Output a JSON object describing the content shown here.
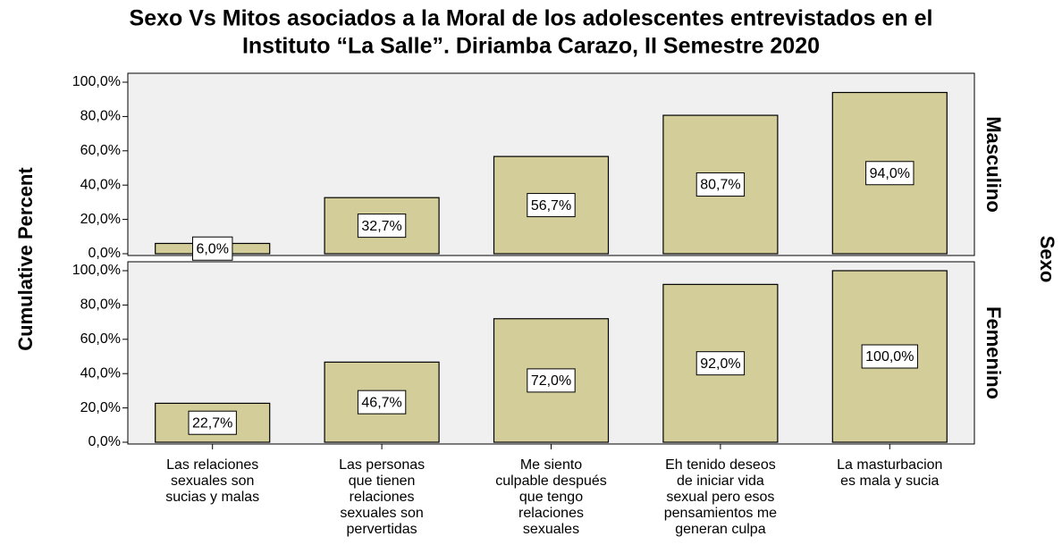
{
  "chart_data": {
    "type": "bar",
    "title": [
      "Sexo Vs Mitos asociados a la Moral de los adolescentes entrevistados en el",
      "Instituto “La Salle”. Diriamba Carazo, II Semestre 2020"
    ],
    "y_label": "Cumulative Percent",
    "facet_label": "Sexo",
    "color": "#d3cd9a",
    "ylim": [
      0,
      100
    ],
    "yticks": [
      {
        "value": 0,
        "label": "0,0%"
      },
      {
        "value": 20,
        "label": "20,0%"
      },
      {
        "value": 40,
        "label": "40,0%"
      },
      {
        "value": 60,
        "label": "60,0%"
      },
      {
        "value": 80,
        "label": "80,0%"
      },
      {
        "value": 100,
        "label": "100,0%"
      }
    ],
    "categories": [
      [
        "Las relaciones",
        "sexuales son",
        "sucias y malas"
      ],
      [
        "Las personas",
        "que tienen",
        "relaciones",
        "sexuales son",
        "pervertidas"
      ],
      [
        "Me siento",
        "culpable después",
        "que tengo",
        "relaciones",
        "sexuales"
      ],
      [
        "Eh tenido deseos",
        "de iniciar vida",
        "sexual pero esos",
        "pensamientos me",
        "generan culpa"
      ],
      [
        "La masturbacion",
        "es mala y sucia"
      ]
    ],
    "panels": [
      {
        "name": "Masculino",
        "values": [
          6.0,
          32.7,
          56.7,
          80.7,
          94.0
        ],
        "value_labels": [
          "6,0%",
          "32,7%",
          "56,7%",
          "80,7%",
          "94,0%"
        ]
      },
      {
        "name": "Femenino",
        "values": [
          22.7,
          46.7,
          72.0,
          92.0,
          100.0
        ],
        "value_labels": [
          "22,7%",
          "46,7%",
          "72,0%",
          "92,0%",
          "100,0%"
        ]
      }
    ]
  }
}
